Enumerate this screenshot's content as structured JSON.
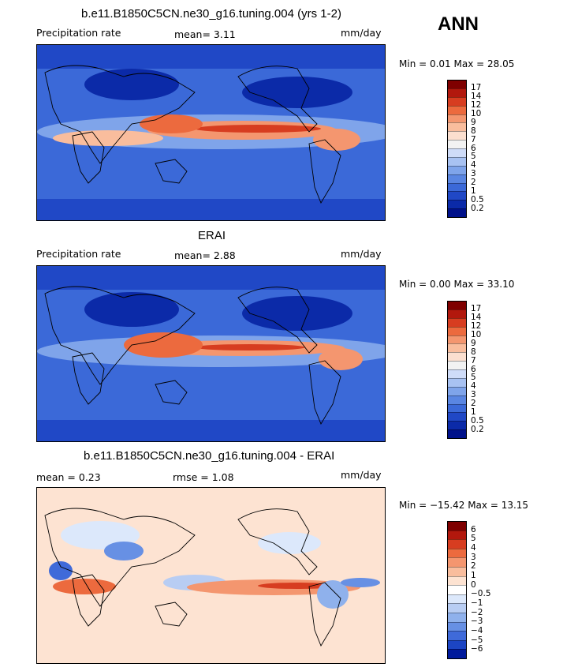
{
  "season": "ANN",
  "panel1": {
    "title": "b.e11.B1850C5CN.ne30_g16.tuning.004 (yrs 1-2)",
    "left_label": "Precipitation rate",
    "center_label": "mean=   3.11",
    "units": "mm/day",
    "minmax": "Min =   0.01 Max =  28.05",
    "colorbar_labels": [
      "17",
      "14",
      "12",
      "10",
      "9",
      "8",
      "7",
      "6",
      "5",
      "4",
      "3",
      "2",
      "1",
      "0.5",
      "0.2"
    ]
  },
  "panel2": {
    "title": "ERAI",
    "left_label": "Precipitation rate",
    "center_label": "mean=   2.88",
    "units": "mm/day",
    "minmax": "Min =   0.00 Max =  33.10",
    "colorbar_labels": [
      "17",
      "14",
      "12",
      "10",
      "9",
      "8",
      "7",
      "6",
      "5",
      "4",
      "3",
      "2",
      "1",
      "0.5",
      "0.2"
    ]
  },
  "panel3": {
    "title": "b.e11.B1850C5CN.ne30_g16.tuning.004 - ERAI",
    "left_label": "mean =   0.23",
    "center_label": "rmse =   1.08",
    "units": "mm/day",
    "minmax": "Min = −15.42 Max =  13.15",
    "colorbar_labels": [
      "6",
      "5",
      "4",
      "3",
      "2",
      "1",
      "0",
      "−0.5",
      "−1",
      "−2",
      "−3",
      "−4",
      "−5",
      "−6"
    ]
  },
  "colors": {
    "precip_scale": [
      "#7f0000",
      "#b2180d",
      "#d73d20",
      "#ec6a3e",
      "#f4966f",
      "#f9bd9d",
      "#fbdfcf",
      "#f2f2f2",
      "#cfdcf8",
      "#a8c2f2",
      "#7fa4ea",
      "#5a86e2",
      "#3b69d8",
      "#2048c6",
      "#0b2aa8",
      "#00118a"
    ],
    "diff_scale": [
      "#7f0000",
      "#b2180d",
      "#d73d20",
      "#ec6a3e",
      "#f4966f",
      "#f9bd9d",
      "#fde3d2",
      "#ffffff",
      "#dce8fb",
      "#b8cdf3",
      "#8fb1ec",
      "#6790e4",
      "#3f6ad9",
      "#1c45c4",
      "#001a9c"
    ]
  }
}
